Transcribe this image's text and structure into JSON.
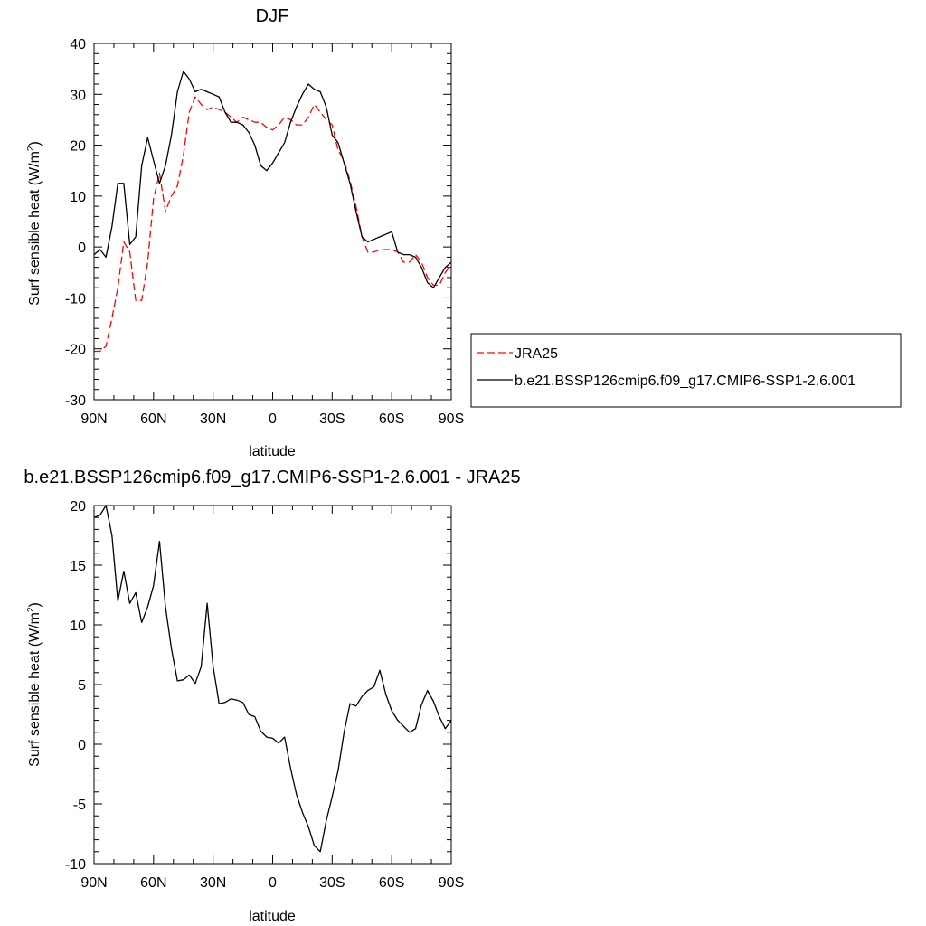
{
  "chart_data": [
    {
      "type": "line",
      "title": "DJF",
      "xlabel": "latitude",
      "ylabel": "Surf sensible heat (W/m",
      "ylabel_sup": "2",
      "ylabel_close": ")",
      "xlim": [
        90,
        -90
      ],
      "ylim": [
        -30,
        40
      ],
      "yticks": [
        -30,
        -20,
        -10,
        0,
        10,
        20,
        30,
        40
      ],
      "xticks": [
        {
          "v": 90,
          "label": "90N"
        },
        {
          "v": 60,
          "label": "60N"
        },
        {
          "v": 30,
          "label": "30N"
        },
        {
          "v": 0,
          "label": "0"
        },
        {
          "v": -30,
          "label": "30S"
        },
        {
          "v": -60,
          "label": "60S"
        },
        {
          "v": -90,
          "label": "90S"
        }
      ],
      "legend": {
        "placement": "right",
        "entries": [
          "JRA25",
          "b.e21.BSSP126cmip6.f09_g17.CMIP6-SSP1-2.6.001"
        ]
      },
      "series": [
        {
          "name": "JRA25",
          "color": "#ff0000",
          "dash": true,
          "x": [
            90,
            87,
            84,
            81,
            78,
            75,
            72,
            69,
            66,
            63,
            60,
            57,
            54,
            51,
            48,
            45,
            42,
            39,
            36,
            33,
            30,
            27,
            24,
            21,
            18,
            15,
            12,
            9,
            6,
            3,
            0,
            -3,
            -6,
            -9,
            -12,
            -15,
            -18,
            -21,
            -24,
            -27,
            -30,
            -33,
            -36,
            -39,
            -42,
            -45,
            -48,
            -51,
            -54,
            -57,
            -60,
            -63,
            -66,
            -69,
            -72,
            -75,
            -78,
            -81,
            -84,
            -87,
            -90
          ],
          "y": [
            -20.5,
            -20.5,
            -19.5,
            -14,
            -8,
            1,
            -1,
            -10.5,
            -10.5,
            -3,
            9.5,
            14.5,
            7,
            10,
            12,
            18,
            26.5,
            29.5,
            28,
            27,
            27.5,
            27,
            26.5,
            25.5,
            24.5,
            25.5,
            25,
            24.5,
            24.5,
            23.5,
            23,
            24,
            25.5,
            25,
            24,
            24,
            25.5,
            28,
            26.5,
            25,
            24,
            19,
            17,
            13,
            8,
            2,
            -1,
            -1,
            -0.5,
            -0.5,
            -0.5,
            -1,
            -3,
            -3,
            -1.5,
            -3,
            -6,
            -7.5,
            -7.5,
            -5,
            -3.5
          ]
        },
        {
          "name": "b.e21.BSSP126cmip6.f09_g17.CMIP6-SSP1-2.6.001",
          "color": "#000000",
          "dash": false,
          "x": [
            90,
            87,
            84,
            81,
            78,
            75,
            72,
            69,
            66,
            63,
            60,
            57,
            54,
            51,
            48,
            45,
            42,
            39,
            36,
            33,
            30,
            27,
            24,
            21,
            18,
            15,
            12,
            9,
            6,
            3,
            0,
            -3,
            -6,
            -9,
            -12,
            -15,
            -18,
            -21,
            -24,
            -27,
            -30,
            -33,
            -36,
            -39,
            -42,
            -45,
            -48,
            -51,
            -54,
            -57,
            -60,
            -63,
            -66,
            -69,
            -72,
            -75,
            -78,
            -81,
            -84,
            -87,
            -90
          ],
          "y": [
            -1.5,
            -0.5,
            -2,
            4,
            12.5,
            12.5,
            0.5,
            2,
            16,
            21.5,
            17,
            12.5,
            16,
            22,
            30.5,
            34.5,
            33,
            30.5,
            31,
            30.5,
            30,
            29.5,
            26.5,
            24.5,
            24.5,
            24,
            22.5,
            20,
            16,
            15,
            16.5,
            18.5,
            20.5,
            24.5,
            27.5,
            30,
            32,
            31,
            30.5,
            27.5,
            22,
            20.5,
            16.5,
            12.5,
            7,
            2,
            1,
            1.5,
            2,
            2.5,
            3,
            -1,
            -1.5,
            -1.5,
            -2,
            -4,
            -7,
            -8,
            -6,
            -4,
            -3
          ]
        }
      ]
    },
    {
      "type": "line",
      "title": "b.e21.BSSP126cmip6.f09_g17.CMIP6-SSP1-2.6.001 - JRA25",
      "xlabel": "latitude",
      "ylabel": "Surf sensible heat (W/m",
      "ylabel_sup": "2",
      "ylabel_close": ")",
      "xlim": [
        90,
        -90
      ],
      "ylim": [
        -10,
        20
      ],
      "yticks": [
        -10,
        -5,
        0,
        5,
        10,
        15,
        20
      ],
      "xticks": [
        {
          "v": 90,
          "label": "90N"
        },
        {
          "v": 60,
          "label": "60N"
        },
        {
          "v": 30,
          "label": "30N"
        },
        {
          "v": 0,
          "label": "0"
        },
        {
          "v": -30,
          "label": "30S"
        },
        {
          "v": -60,
          "label": "60S"
        },
        {
          "v": -90,
          "label": "90S"
        }
      ],
      "series": [
        {
          "color": "#000000",
          "dash": false,
          "x": [
            90,
            87,
            84,
            81,
            78,
            75,
            72,
            69,
            66,
            63,
            60,
            57,
            54,
            51,
            48,
            45,
            42,
            39,
            36,
            33,
            30,
            27,
            24,
            21,
            18,
            15,
            12,
            9,
            6,
            3,
            0,
            -3,
            -6,
            -9,
            -12,
            -15,
            -18,
            -21,
            -24,
            -27,
            -30,
            -33,
            -36,
            -39,
            -42,
            -45,
            -48,
            -51,
            -54,
            -57,
            -60,
            -63,
            -66,
            -69,
            -72,
            -75,
            -78,
            -81,
            -84,
            -87,
            -90
          ],
          "y": [
            19,
            19.2,
            20,
            17.5,
            12,
            14.5,
            11.8,
            12.7,
            10.2,
            11.5,
            13.3,
            17,
            11.5,
            8,
            5.3,
            5.4,
            5.8,
            5.1,
            6.5,
            11.8,
            6.5,
            3.4,
            3.5,
            3.8,
            3.7,
            3.5,
            2.5,
            2.3,
            1.1,
            0.6,
            0.5,
            0.1,
            0.6,
            -2,
            -4.2,
            -5.7,
            -6.9,
            -8.5,
            -9,
            -6.4,
            -4.4,
            -2.2,
            1,
            3.4,
            3.2,
            4,
            4.5,
            4.8,
            6.2,
            4.2,
            2.8,
            2,
            1.5,
            1,
            1.3,
            3.3,
            4.5,
            3.6,
            2.3,
            1.3,
            2
          ]
        }
      ]
    }
  ]
}
